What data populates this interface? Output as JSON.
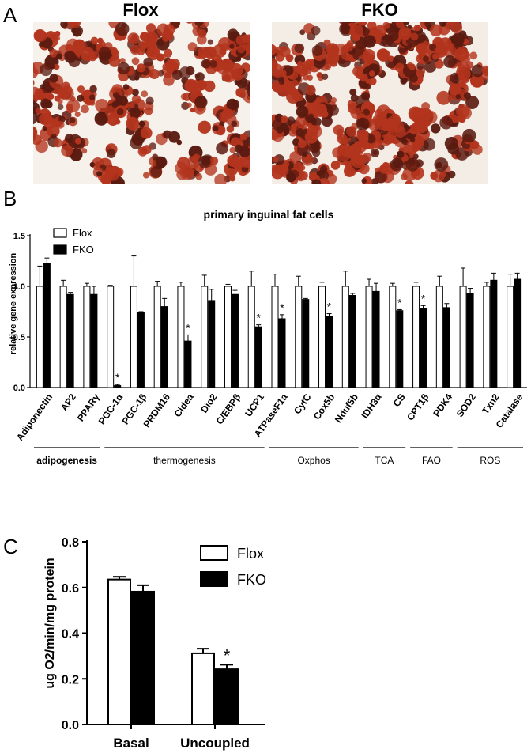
{
  "panels": {
    "A": {
      "letter": "A",
      "images": [
        {
          "title": "Flox"
        },
        {
          "title": "FKO"
        }
      ],
      "stain_color": "#b3341d",
      "dark_color": "#5a1a10"
    },
    "B": {
      "letter": "B"
    },
    "C": {
      "letter": "C"
    }
  },
  "chart_data": [
    {
      "type": "bar",
      "title": "primary inguinal fat cells",
      "xlabel": "",
      "ylabel": "relative gene expression",
      "ylim": [
        0,
        1.5
      ],
      "yticks": [
        "0.0",
        "0.5",
        "1.0",
        "1.5"
      ],
      "legend": {
        "placement": "top-left",
        "entries": [
          "Flox",
          "FKO"
        ]
      },
      "categories": [
        "Adiponectin",
        "AP2",
        "PPARγ",
        "PGC-1α",
        "PGC-1β",
        "PRDM16",
        "Cidea",
        "Dio2",
        "C/EBPβ",
        "UCP1",
        "ATPaseF1a",
        "CytC",
        "Cox5b",
        "Nduf5b",
        "IDH3α",
        "CS",
        "CPT1β",
        "PDK4",
        "SOD2",
        "Txn2",
        "Catalase"
      ],
      "series": [
        {
          "name": "Flox",
          "color": "#ffffff",
          "values": [
            1.0,
            1.0,
            1.0,
            1.0,
            1.0,
            1.0,
            1.0,
            1.0,
            1.0,
            1.0,
            1.0,
            1.0,
            1.0,
            1.0,
            1.0,
            1.0,
            1.0,
            1.0,
            1.0,
            1.0,
            1.0
          ],
          "errors": [
            0.2,
            0.06,
            0.03,
            0.01,
            0.3,
            0.05,
            0.04,
            0.11,
            0.02,
            0.15,
            0.12,
            0.1,
            0.04,
            0.15,
            0.07,
            0.03,
            0.04,
            0.1,
            0.18,
            0.04,
            0.12
          ]
        },
        {
          "name": "FKO",
          "color": "#000000",
          "values": [
            1.23,
            0.92,
            0.92,
            0.02,
            0.74,
            0.8,
            0.46,
            0.86,
            0.92,
            0.6,
            0.68,
            0.87,
            0.7,
            0.91,
            0.95,
            0.76,
            0.78,
            0.79,
            0.93,
            1.06,
            1.07
          ],
          "errors": [
            0.05,
            0.02,
            0.08,
            0.01,
            0.01,
            0.08,
            0.06,
            0.11,
            0.04,
            0.02,
            0.04,
            0.01,
            0.03,
            0.02,
            0.08,
            0.01,
            0.03,
            0.04,
            0.05,
            0.07,
            0.06
          ]
        }
      ],
      "significance": [
        "",
        "",
        "",
        "*",
        "",
        "",
        "*",
        "",
        "",
        "*",
        "*",
        "",
        "*",
        "",
        "",
        "*",
        "*",
        "",
        "",
        "",
        ""
      ],
      "groups": [
        {
          "label": "adipogenesis",
          "from": 0,
          "to": 2,
          "bold": true
        },
        {
          "label": "thermogenesis",
          "from": 3,
          "to": 9,
          "bold": false
        },
        {
          "label": "Oxphos",
          "from": 10,
          "to": 13,
          "bold": false
        },
        {
          "label": "TCA",
          "from": 14,
          "to": 15,
          "bold": false
        },
        {
          "label": "FAO",
          "from": 16,
          "to": 17,
          "bold": false
        },
        {
          "label": "ROS",
          "from": 18,
          "to": 20,
          "bold": false
        }
      ]
    },
    {
      "type": "bar",
      "title": "",
      "xlabel": "",
      "ylabel": "ug O2/min/mg protein",
      "ylim": [
        0,
        0.8
      ],
      "yticks": [
        "0.0",
        "0.2",
        "0.4",
        "0.6",
        "0.8"
      ],
      "legend": {
        "placement": "top-right",
        "entries": [
          "Flox",
          "FKO"
        ]
      },
      "categories": [
        "Basal",
        "Uncoupled"
      ],
      "series": [
        {
          "name": "Flox",
          "color": "#ffffff",
          "values": [
            0.635,
            0.312
          ],
          "errors": [
            0.012,
            0.02
          ]
        },
        {
          "name": "FKO",
          "color": "#000000",
          "values": [
            0.582,
            0.242
          ],
          "errors": [
            0.028,
            0.02
          ]
        }
      ],
      "significance": [
        "",
        "*"
      ]
    }
  ]
}
